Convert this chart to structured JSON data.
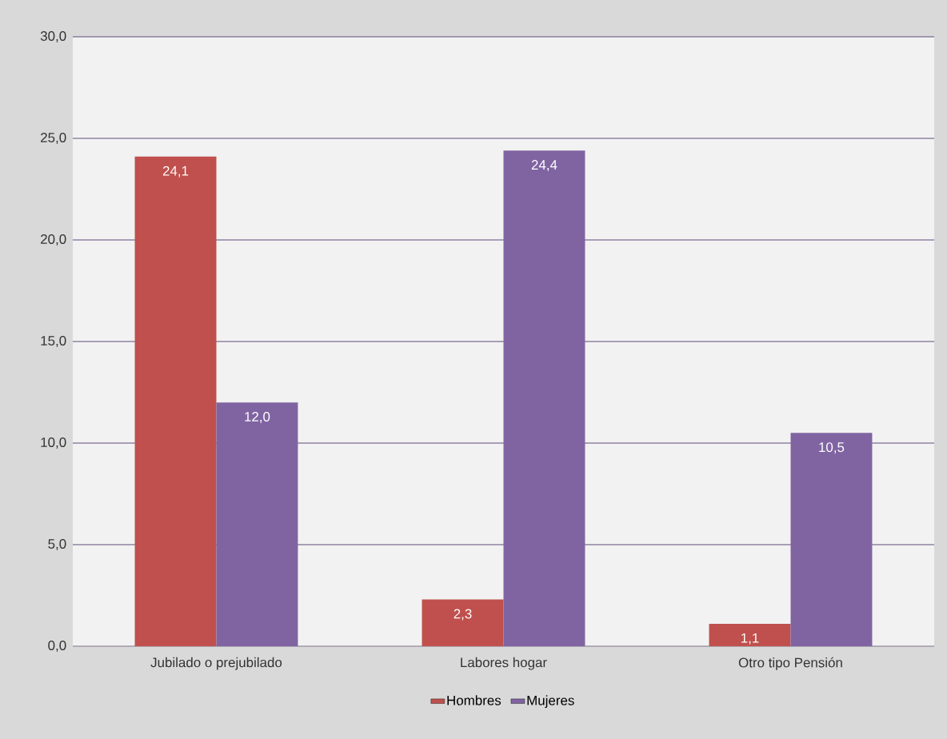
{
  "chart_data": {
    "type": "bar",
    "categories": [
      "Jubilado o prejubilado",
      "Labores hogar",
      "Otro tipo Pensión"
    ],
    "series": [
      {
        "name": "Hombres",
        "color": "#c0504d",
        "values": [
          24.1,
          2.3,
          1.1
        ],
        "value_labels": [
          "24,1",
          "2,3",
          "1,1"
        ]
      },
      {
        "name": "Mujeres",
        "color": "#8064a2",
        "values": [
          12.0,
          24.4,
          10.5
        ],
        "value_labels": [
          "12,0",
          "24,4",
          "10,5"
        ]
      }
    ],
    "ylim": [
      0,
      30
    ],
    "yticks": [
      {
        "value": 0,
        "label": "0,0"
      },
      {
        "value": 5,
        "label": "5,0"
      },
      {
        "value": 10,
        "label": "10,0"
      },
      {
        "value": 15,
        "label": "15,0"
      },
      {
        "value": 20,
        "label": "20,0"
      },
      {
        "value": 25,
        "label": "25,0"
      },
      {
        "value": 30,
        "label": "30,0"
      }
    ],
    "grid": "y",
    "legend": "bottom"
  }
}
